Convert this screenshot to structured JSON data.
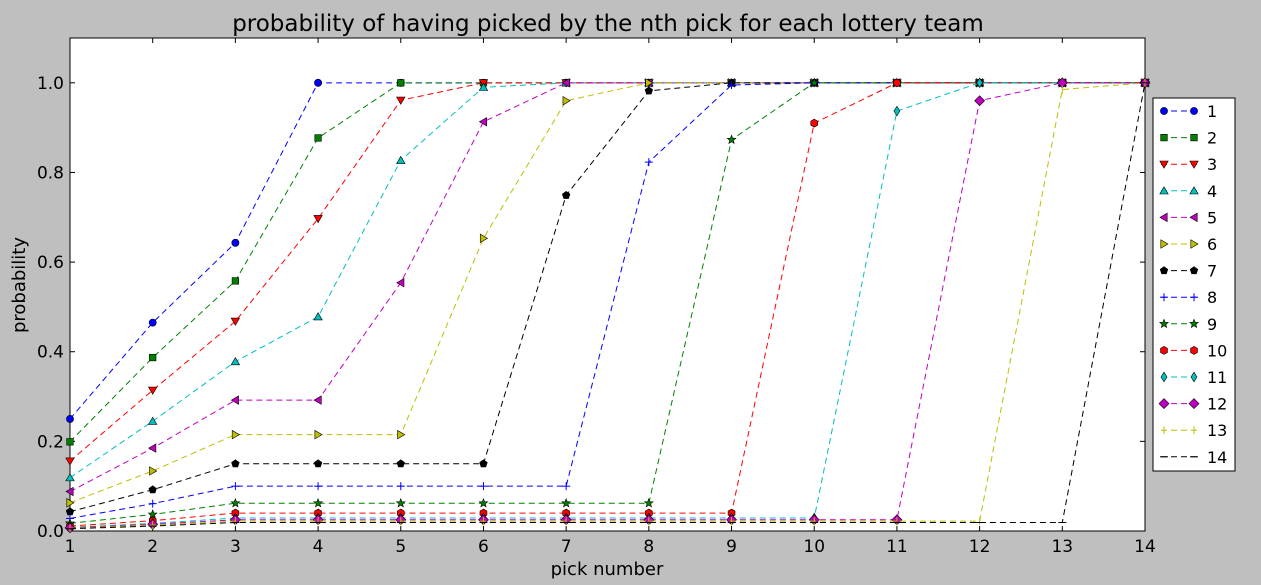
{
  "chart_data": {
    "type": "line",
    "title": "probability of having picked by the nth pick for each lottery team",
    "xlabel": "pick number",
    "ylabel": "probability",
    "xlim": [
      1,
      14
    ],
    "ylim": [
      0,
      1.1
    ],
    "x": [
      1,
      2,
      3,
      4,
      5,
      6,
      7,
      8,
      9,
      10,
      11,
      12,
      13,
      14
    ],
    "xticks": [
      "1",
      "2",
      "3",
      "4",
      "5",
      "6",
      "7",
      "8",
      "9",
      "10",
      "11",
      "12",
      "13",
      "14"
    ],
    "yticks": [
      "0.0",
      "0.2",
      "0.4",
      "0.6",
      "0.8",
      "1.0"
    ],
    "legend_position": "right",
    "grid": false,
    "series": [
      {
        "name": "1",
        "color": "#0000ff",
        "marker": "circle",
        "values": [
          0.25,
          0.465,
          0.643,
          1.0,
          1.0,
          1.0,
          1.0,
          1.0,
          1.0,
          1.0,
          1.0,
          1.0,
          1.0,
          1.0
        ]
      },
      {
        "name": "2",
        "color": "#008000",
        "marker": "square",
        "values": [
          0.199,
          0.387,
          0.558,
          0.877,
          1.0,
          1.0,
          1.0,
          1.0,
          1.0,
          1.0,
          1.0,
          1.0,
          1.0,
          1.0
        ]
      },
      {
        "name": "3",
        "color": "#ff0000",
        "marker": "triangle-down",
        "values": [
          0.156,
          0.314,
          0.468,
          0.697,
          0.961,
          1.0,
          1.0,
          1.0,
          1.0,
          1.0,
          1.0,
          1.0,
          1.0,
          1.0
        ]
      },
      {
        "name": "4",
        "color": "#00bfbf",
        "marker": "triangle-up",
        "values": [
          0.119,
          0.245,
          0.378,
          0.478,
          0.827,
          0.99,
          1.0,
          1.0,
          1.0,
          1.0,
          1.0,
          1.0,
          1.0,
          1.0
        ]
      },
      {
        "name": "5",
        "color": "#bf00bf",
        "marker": "triangle-left",
        "values": [
          0.088,
          0.185,
          0.292,
          0.292,
          0.554,
          0.913,
          1.0,
          1.0,
          1.0,
          1.0,
          1.0,
          1.0,
          1.0,
          1.0
        ]
      },
      {
        "name": "6",
        "color": "#bfbf00",
        "marker": "triangle-right",
        "values": [
          0.063,
          0.134,
          0.215,
          0.215,
          0.215,
          0.653,
          0.96,
          1.0,
          1.0,
          1.0,
          1.0,
          1.0,
          1.0,
          1.0
        ]
      },
      {
        "name": "7",
        "color": "#000000",
        "marker": "pentagon",
        "values": [
          0.043,
          0.092,
          0.15,
          0.15,
          0.15,
          0.15,
          0.749,
          0.982,
          1.0,
          1.0,
          1.0,
          1.0,
          1.0,
          1.0
        ]
      },
      {
        "name": "8",
        "color": "#0000ff",
        "marker": "plus",
        "values": [
          0.028,
          0.061,
          0.1,
          0.1,
          0.1,
          0.1,
          0.1,
          0.823,
          0.995,
          1.0,
          1.0,
          1.0,
          1.0,
          1.0
        ]
      },
      {
        "name": "9",
        "color": "#008000",
        "marker": "star",
        "values": [
          0.017,
          0.037,
          0.062,
          0.062,
          0.062,
          0.062,
          0.062,
          0.062,
          0.873,
          1.0,
          1.0,
          1.0,
          1.0,
          1.0
        ]
      },
      {
        "name": "10",
        "color": "#ff0000",
        "marker": "hexagon",
        "values": [
          0.011,
          0.023,
          0.04,
          0.04,
          0.04,
          0.04,
          0.04,
          0.04,
          0.04,
          0.91,
          1.0,
          1.0,
          1.0,
          1.0
        ]
      },
      {
        "name": "11",
        "color": "#00bfbf",
        "marker": "thin-diamond",
        "values": [
          0.008,
          0.017,
          0.029,
          0.029,
          0.029,
          0.029,
          0.029,
          0.029,
          0.029,
          0.029,
          0.937,
          1.0,
          1.0,
          1.0
        ]
      },
      {
        "name": "12",
        "color": "#bf00bf",
        "marker": "diamond",
        "values": [
          0.007,
          0.015,
          0.025,
          0.025,
          0.025,
          0.025,
          0.025,
          0.025,
          0.025,
          0.025,
          0.025,
          0.96,
          1.0,
          1.0
        ]
      },
      {
        "name": "13",
        "color": "#bfbf00",
        "marker": "vline",
        "values": [
          0.006,
          0.013,
          0.022,
          0.022,
          0.022,
          0.022,
          0.022,
          0.022,
          0.022,
          0.022,
          0.022,
          0.022,
          0.985,
          1.0
        ]
      },
      {
        "name": "14",
        "color": "#000000",
        "marker": "hline",
        "values": [
          0.005,
          0.011,
          0.019,
          0.019,
          0.019,
          0.019,
          0.019,
          0.019,
          0.019,
          0.019,
          0.019,
          0.019,
          0.019,
          1.0
        ]
      }
    ]
  }
}
